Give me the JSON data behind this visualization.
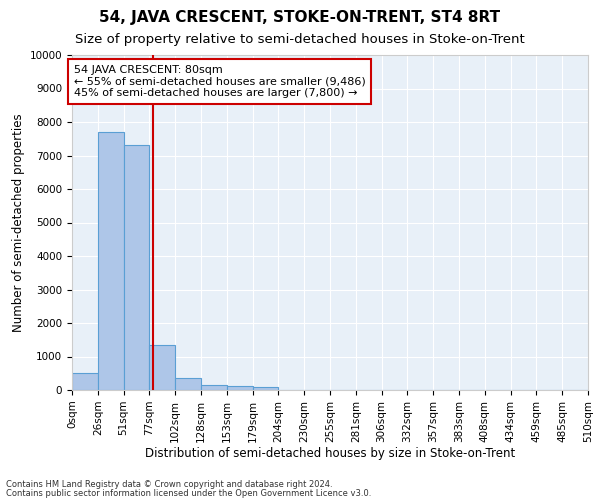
{
  "title": "54, JAVA CRESCENT, STOKE-ON-TRENT, ST4 8RT",
  "subtitle": "Size of property relative to semi-detached houses in Stoke-on-Trent",
  "xlabel": "Distribution of semi-detached houses by size in Stoke-on-Trent",
  "ylabel": "Number of semi-detached properties",
  "footnote1": "Contains HM Land Registry data © Crown copyright and database right 2024.",
  "footnote2": "Contains public sector information licensed under the Open Government Licence v3.0.",
  "bar_edges": [
    0,
    25.5,
    51,
    76.5,
    102,
    127.5,
    153,
    178.5,
    204,
    229.5,
    255,
    280.5,
    306,
    331.5,
    357,
    382.5,
    408,
    433.5,
    459,
    484.5,
    510
  ],
  "bar_heights": [
    500,
    7700,
    7300,
    1350,
    350,
    150,
    130,
    100,
    0,
    0,
    0,
    0,
    0,
    0,
    0,
    0,
    0,
    0,
    0,
    0
  ],
  "bar_color": "#aec6e8",
  "bar_edgecolor": "#5a9fd4",
  "property_size": 80,
  "red_line_color": "#cc0000",
  "annotation_text": "54 JAVA CRESCENT: 80sqm\n← 55% of semi-detached houses are smaller (9,486)\n45% of semi-detached houses are larger (7,800) →",
  "ylim": [
    0,
    10000
  ],
  "xlim": [
    0,
    510
  ],
  "xtick_values": [
    0,
    25.5,
    51,
    76.5,
    102,
    127.5,
    153,
    178.5,
    204,
    229.5,
    255,
    280.5,
    306,
    331.5,
    357,
    382.5,
    408,
    433.5,
    459,
    484.5,
    510
  ],
  "xtick_labels": [
    "0sqm",
    "26sqm",
    "51sqm",
    "77sqm",
    "102sqm",
    "128sqm",
    "153sqm",
    "179sqm",
    "204sqm",
    "230sqm",
    "255sqm",
    "281sqm",
    "306sqm",
    "332sqm",
    "357sqm",
    "383sqm",
    "408sqm",
    "434sqm",
    "459sqm",
    "485sqm",
    "510sqm"
  ],
  "ytick_values": [
    0,
    1000,
    2000,
    3000,
    4000,
    5000,
    6000,
    7000,
    8000,
    9000,
    10000
  ],
  "background_color": "#e8f0f8",
  "grid_color": "#ffffff",
  "title_fontsize": 11,
  "subtitle_fontsize": 9.5,
  "axis_label_fontsize": 8.5,
  "tick_fontsize": 7.5,
  "annotation_fontsize": 8
}
